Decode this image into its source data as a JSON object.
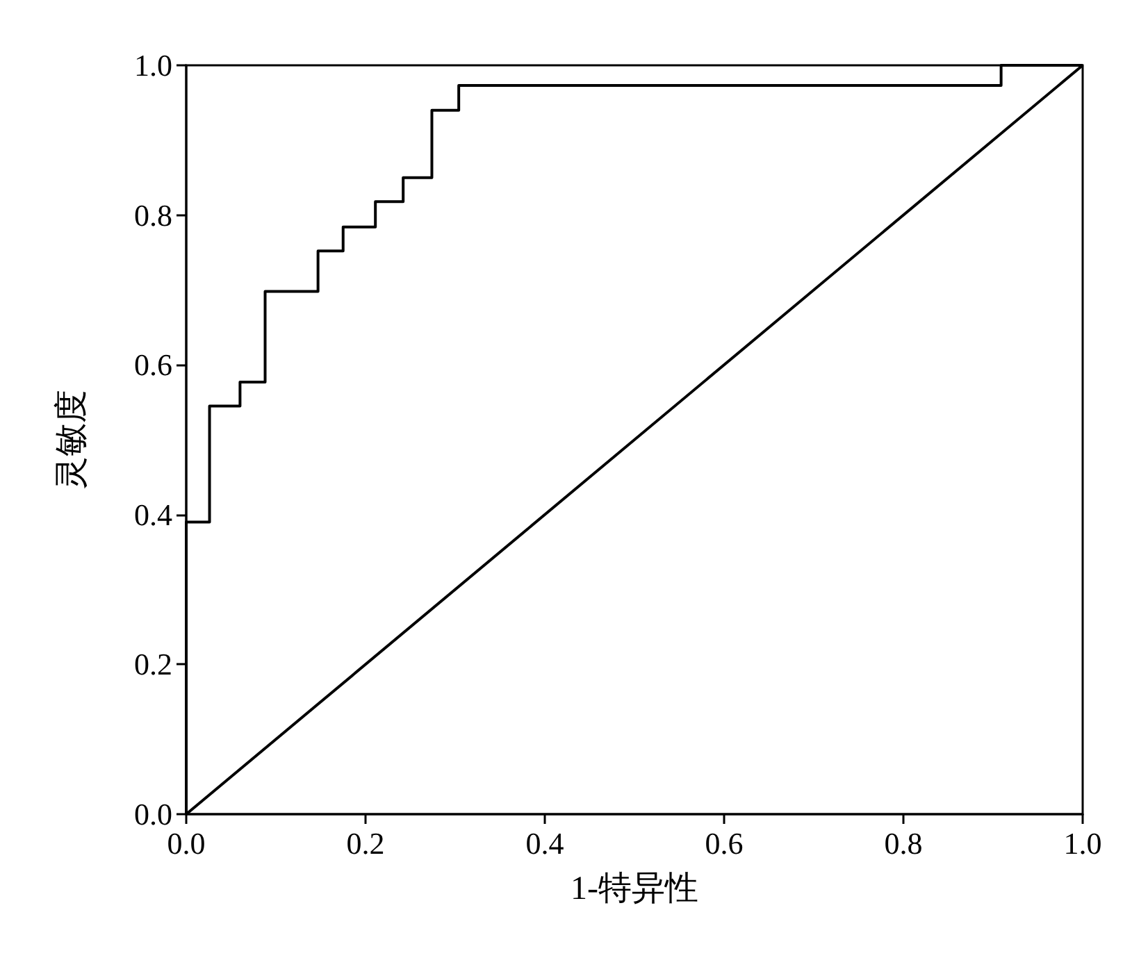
{
  "chart_data": {
    "type": "step",
    "xlabel": "1-特异性",
    "ylabel": "灵敏度",
    "xlim": [
      0,
      1
    ],
    "ylim": [
      0,
      1
    ],
    "xticks": [
      {
        "value": 0,
        "label": "0.0"
      },
      0.2,
      0.4,
      0.6,
      0.8,
      {
        "value": 1,
        "label": "1.0"
      }
    ],
    "yticks": [
      {
        "value": 0,
        "label": "0.0"
      },
      0.2,
      0.4,
      0.6,
      0.8,
      {
        "value": 1,
        "label": "1.0"
      }
    ],
    "grid": false,
    "marker": "none",
    "line_style": "solid",
    "series": [
      {
        "color": "#000000",
        "x": [
          0,
          0,
          0.026,
          0.06,
          0.088,
          0.147,
          0.175,
          0.211,
          0.242,
          0.274,
          0.304,
          0.909,
          1.0
        ],
        "values": [
          0,
          0.39,
          0.545,
          0.577,
          0.698,
          0.752,
          0.784,
          0.818,
          0.85,
          0.94,
          0.973,
          1.0,
          1.0
        ]
      },
      {
        "type": "line",
        "color": "#000000",
        "x": [
          0,
          1
        ],
        "values": [
          0,
          1
        ]
      }
    ]
  }
}
